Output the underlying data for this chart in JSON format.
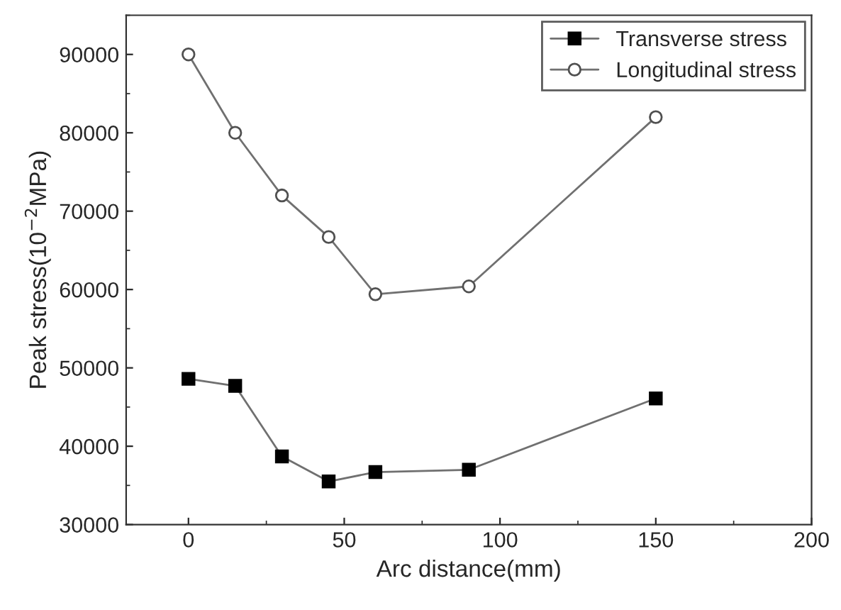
{
  "chart_data": {
    "type": "line",
    "xlabel": "Arc distance(mm)",
    "ylabel": "Peak stress(10$^{−2}$MPa)",
    "x": [
      0,
      15,
      30,
      45,
      60,
      90,
      150
    ],
    "series": [
      {
        "name": "Transverse stress",
        "color": "#000000",
        "marker": "square",
        "values": [
          48600,
          47700,
          38700,
          35500,
          36700,
          37000,
          46100
        ]
      },
      {
        "name": "Longitudinal stress",
        "color": "#ffffff",
        "marker": "circle",
        "values": [
          90000,
          80000,
          72000,
          66700,
          59400,
          60400,
          82000
        ]
      }
    ],
    "xlim": [
      -20,
      200
    ],
    "xticks": [
      0,
      50,
      100,
      150,
      200
    ],
    "ylim": [
      30000,
      95000
    ],
    "yticks": [
      30000,
      40000,
      50000,
      60000,
      70000,
      80000,
      90000
    ],
    "grid": false,
    "legend": "top right",
    "line_style": "solid"
  }
}
